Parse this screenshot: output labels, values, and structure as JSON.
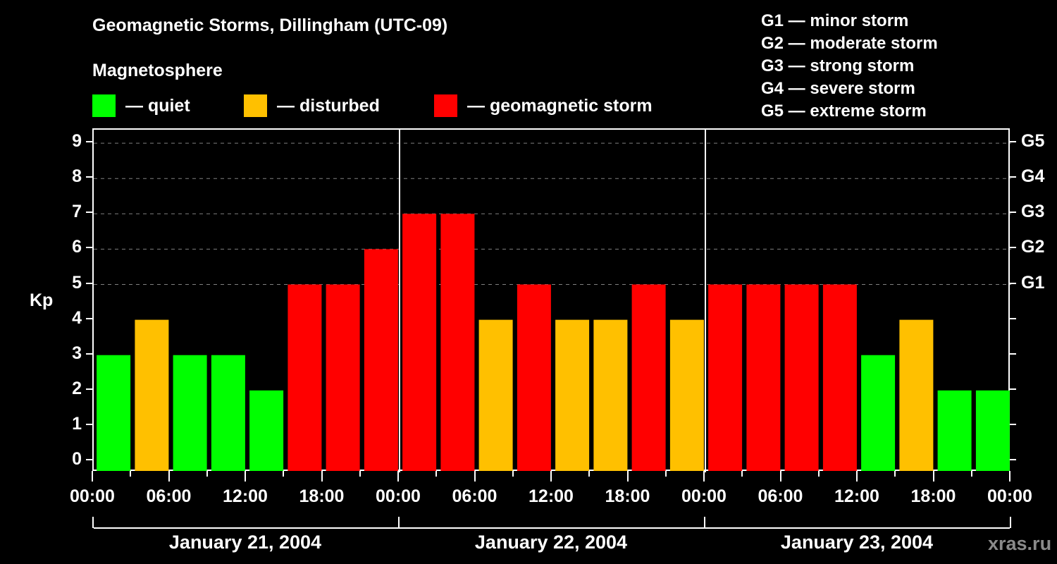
{
  "header": {
    "title": "Geomagnetic Storms, Dillingham (UTC-09)",
    "subtitle": "Magnetosphere"
  },
  "legend": {
    "items": [
      {
        "label": "— quiet",
        "color": "#00ff00"
      },
      {
        "label": "— disturbed",
        "color": "#ffc000"
      },
      {
        "label": "— geomagnetic storm",
        "color": "#ff0000"
      }
    ]
  },
  "storm_scale": {
    "items": [
      "G1 — minor storm",
      "G2 — moderate storm",
      "G3 — strong storm",
      "G4 — severe storm",
      "G5 — extreme storm"
    ]
  },
  "axes": {
    "ylabel": "Kp",
    "yticks": [
      "0",
      "1",
      "2",
      "3",
      "4",
      "5",
      "6",
      "7",
      "8",
      "9"
    ],
    "right_ticks": [
      {
        "kp": 5,
        "label": "G1"
      },
      {
        "kp": 6,
        "label": "G2"
      },
      {
        "kp": 7,
        "label": "G3"
      },
      {
        "kp": 8,
        "label": "G4"
      },
      {
        "kp": 9,
        "label": "G5"
      }
    ],
    "xticks": [
      "00:00",
      "06:00",
      "12:00",
      "18:00",
      "00:00",
      "06:00",
      "12:00",
      "18:00",
      "00:00",
      "06:00",
      "12:00",
      "18:00",
      "00:00"
    ],
    "dates": [
      "January 21, 2004",
      "January 22, 2004",
      "January 23, 2004"
    ]
  },
  "watermark": "xras.ru",
  "colors": {
    "quiet": "#00ff00",
    "disturbed": "#ffc000",
    "storm": "#ff0000",
    "background": "#000000",
    "grid": "#808080"
  },
  "chart_data": {
    "type": "bar",
    "title": "Geomagnetic Storms, Dillingham (UTC-09)",
    "subtitle": "Magnetosphere",
    "xlabel": "",
    "ylabel": "Kp",
    "ylim": [
      0,
      9
    ],
    "grid": "dashed horizontal at Kp 5-9",
    "legend_position": "top",
    "categories": [
      "Jan 21 00:00",
      "Jan 21 03:00",
      "Jan 21 06:00",
      "Jan 21 09:00",
      "Jan 21 12:00",
      "Jan 21 15:00",
      "Jan 21 18:00",
      "Jan 21 21:00",
      "Jan 22 00:00",
      "Jan 22 03:00",
      "Jan 22 06:00",
      "Jan 22 09:00",
      "Jan 22 12:00",
      "Jan 22 15:00",
      "Jan 22 18:00",
      "Jan 22 21:00",
      "Jan 23 00:00",
      "Jan 23 03:00",
      "Jan 23 06:00",
      "Jan 23 09:00",
      "Jan 23 12:00",
      "Jan 23 15:00",
      "Jan 23 18:00",
      "Jan 23 21:00"
    ],
    "values": [
      3,
      4,
      3,
      3,
      2,
      5,
      5,
      6,
      7,
      7,
      4,
      5,
      4,
      4,
      5,
      4,
      5,
      5,
      5,
      5,
      3,
      4,
      2,
      2
    ],
    "status": [
      "quiet",
      "disturbed",
      "quiet",
      "quiet",
      "quiet",
      "storm",
      "storm",
      "storm",
      "storm",
      "storm",
      "disturbed",
      "storm",
      "disturbed",
      "disturbed",
      "storm",
      "disturbed",
      "storm",
      "storm",
      "storm",
      "storm",
      "quiet",
      "disturbed",
      "quiet",
      "quiet"
    ],
    "legend": [
      "quiet",
      "disturbed",
      "geomagnetic storm"
    ],
    "right_axis": {
      "G1": 5,
      "G2": 6,
      "G3": 7,
      "G4": 8,
      "G5": 9
    }
  }
}
